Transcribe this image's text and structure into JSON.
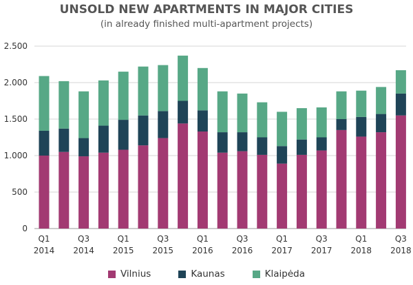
{
  "chart_data": {
    "type": "bar",
    "stacked": true,
    "title": "UNSOLD NEW APARTMENTS IN MAJOR CITIES",
    "subtitle": "(in already finished multi-apartment projects)",
    "categories": [
      "Q1 2014",
      "Q2 2014",
      "Q3 2014",
      "Q4 2014",
      "Q1 2015",
      "Q2 2015",
      "Q3 2015",
      "Q4 2015",
      "Q1 2016",
      "Q2 2016",
      "Q3 2016",
      "Q4 2016",
      "Q1 2017",
      "Q2 2017",
      "Q3 2017",
      "Q4 2017",
      "Q1 2018",
      "Q2 2018",
      "Q3 2018"
    ],
    "x_tick_labels": [
      {
        "index": 0,
        "line1": "Q1",
        "line2": "2014"
      },
      {
        "index": 2,
        "line1": "Q3",
        "line2": "2014"
      },
      {
        "index": 4,
        "line1": "Q1",
        "line2": "2015"
      },
      {
        "index": 6,
        "line1": "Q3",
        "line2": "2015"
      },
      {
        "index": 8,
        "line1": "Q1",
        "line2": "2016"
      },
      {
        "index": 10,
        "line1": "Q3",
        "line2": "2016"
      },
      {
        "index": 12,
        "line1": "Q1",
        "line2": "2017"
      },
      {
        "index": 14,
        "line1": "Q3",
        "line2": "2017"
      },
      {
        "index": 16,
        "line1": "Q1",
        "line2": "2018"
      },
      {
        "index": 18,
        "line1": "Q3",
        "line2": "2018"
      }
    ],
    "y_ticks": [
      0,
      500,
      1000,
      1500,
      2000,
      2500
    ],
    "y_tick_labels": [
      "0",
      "500",
      "1.000",
      "1.500",
      "2.000",
      "2.500"
    ],
    "ylim": [
      0,
      2500
    ],
    "grid": true,
    "legend_position": "bottom",
    "series": [
      {
        "name": "Vilnius",
        "color": "#a23a72",
        "values": [
          1000,
          1050,
          990,
          1040,
          1080,
          1140,
          1240,
          1440,
          1330,
          1040,
          1060,
          1010,
          890,
          1010,
          1070,
          1350,
          1260,
          1320,
          1550
        ]
      },
      {
        "name": "Kaunas",
        "color": "#1f4457",
        "values": [
          340,
          320,
          250,
          370,
          410,
          410,
          370,
          310,
          290,
          280,
          260,
          240,
          240,
          210,
          180,
          150,
          270,
          250,
          300
        ]
      },
      {
        "name": "Klaipėda",
        "color": "#57a886",
        "values": [
          750,
          650,
          640,
          620,
          660,
          670,
          630,
          620,
          580,
          560,
          530,
          480,
          470,
          430,
          410,
          380,
          360,
          370,
          320
        ]
      }
    ]
  }
}
